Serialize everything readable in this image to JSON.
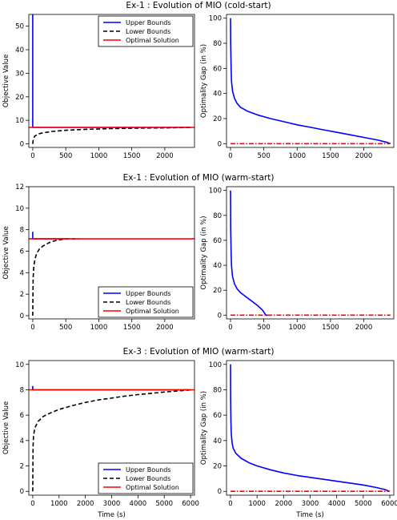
{
  "figure": {
    "row_titles": [
      "Ex-1 : Evolution of MIO (cold-start)",
      "Ex-1 : Evolution of MIO (warm-start)",
      "Ex-3 : Evolution of MIO (warm-start)"
    ],
    "colors": {
      "upper": "#0000ff",
      "lower": "#000000",
      "optimal": "#ff0000",
      "gap": "#0000ff",
      "gap_zero": "#ff0000"
    }
  },
  "chart_data": [
    {
      "type": "line",
      "title": "Ex-1 : Evolution of MIO (cold-start)",
      "xlabel": "",
      "ylabel": "Objective Value",
      "xlim": [
        -60,
        2450
      ],
      "ylim": [
        -1.5,
        55
      ],
      "xticks": [
        0,
        500,
        1000,
        1500,
        2000
      ],
      "yticks": [
        0,
        10,
        20,
        30,
        40,
        50
      ],
      "legend": {
        "position": "top-right",
        "entries": [
          "Upper Bounds",
          "Lower Bounds",
          "Optimal Solution"
        ]
      },
      "series": [
        {
          "name": "Upper Bounds",
          "style": "solid",
          "color": "#0000ff",
          "x": [
            0,
            0,
            0,
            8,
            40,
            100,
            500,
            1000,
            1500,
            2000,
            2400
          ],
          "y": [
            55,
            55,
            7.0,
            7.0,
            7.0,
            7.0,
            7.0,
            7.0,
            7.0,
            7.0,
            7.0
          ]
        },
        {
          "name": "Lower Bounds",
          "style": "dashed",
          "color": "#000000",
          "x": [
            0,
            8,
            30,
            80,
            150,
            300,
            500,
            800,
            1200,
            1600,
            2000,
            2400
          ],
          "y": [
            0,
            2.0,
            3.3,
            4.2,
            4.7,
            5.3,
            5.8,
            6.2,
            6.5,
            6.7,
            6.8,
            7.0
          ]
        },
        {
          "name": "Optimal Solution",
          "style": "solid",
          "color": "#ff0000",
          "x": [
            -60,
            2450
          ],
          "y": [
            7.0,
            7.0
          ]
        }
      ]
    },
    {
      "type": "line",
      "title": "",
      "xlabel": "",
      "ylabel": "Optimality Gap (in %)",
      "xlim": [
        -60,
        2450
      ],
      "ylim": [
        -3,
        103
      ],
      "xticks": [
        0,
        500,
        1000,
        1500,
        2000
      ],
      "yticks": [
        0,
        20,
        40,
        60,
        80,
        100
      ],
      "series": [
        {
          "style": "solid",
          "color": "#0000ff",
          "x": [
            0,
            3,
            8,
            15,
            30,
            60,
            100,
            150,
            250,
            400,
            600,
            800,
            1000,
            1200,
            1400,
            1600,
            1800,
            2000,
            2200,
            2350,
            2400
          ],
          "y": [
            100,
            80,
            62,
            50,
            42,
            36,
            32,
            29,
            26,
            23,
            20,
            17.5,
            15,
            13,
            11,
            9,
            7,
            5,
            3,
            1,
            0
          ]
        },
        {
          "style": "dashdot",
          "color": "#ff0000",
          "x": [
            0,
            2400
          ],
          "y": [
            0,
            0
          ]
        }
      ]
    },
    {
      "type": "line",
      "title": "Ex-1 : Evolution of MIO (warm-start)",
      "xlabel": "",
      "ylabel": "Objective Value",
      "xlim": [
        -60,
        2450
      ],
      "ylim": [
        -0.3,
        12
      ],
      "xticks": [
        0,
        500,
        1000,
        1500,
        2000
      ],
      "yticks": [
        0,
        2,
        4,
        6,
        8,
        10,
        12
      ],
      "legend": {
        "position": "bottom-right",
        "entries": [
          "Upper Bounds",
          "Lower Bounds",
          "Optimal Solution"
        ]
      },
      "series": [
        {
          "name": "Upper Bounds",
          "style": "solid",
          "color": "#0000ff",
          "x": [
            0,
            0,
            0,
            50,
            200,
            400,
            530
          ],
          "y": [
            7.8,
            7.8,
            7.15,
            7.15,
            7.15,
            7.15,
            7.15
          ]
        },
        {
          "name": "Lower Bounds",
          "style": "dashed",
          "color": "#000000",
          "x": [
            0,
            5,
            15,
            30,
            60,
            100,
            160,
            250,
            350,
            450,
            530,
            700
          ],
          "y": [
            0,
            3.5,
            4.5,
            5.2,
            5.8,
            6.2,
            6.5,
            6.8,
            7.0,
            7.1,
            7.15,
            7.15
          ]
        },
        {
          "name": "Optimal Solution",
          "style": "solid",
          "color": "#ff0000",
          "x": [
            -60,
            2450
          ],
          "y": [
            7.15,
            7.15
          ]
        }
      ]
    },
    {
      "type": "line",
      "title": "",
      "xlabel": "",
      "ylabel": "Optimality Gap (in %)",
      "xlim": [
        -60,
        2450
      ],
      "ylim": [
        -3,
        103
      ],
      "xticks": [
        0,
        500,
        1000,
        1500,
        2000
      ],
      "yticks": [
        0,
        20,
        40,
        60,
        80,
        100
      ],
      "series": [
        {
          "style": "solid",
          "color": "#0000ff",
          "x": [
            0,
            3,
            8,
            15,
            30,
            60,
            100,
            150,
            200,
            300,
            400,
            480,
            530,
            600
          ],
          "y": [
            100,
            70,
            52,
            40,
            31,
            25,
            21,
            18,
            16,
            12,
            8,
            4,
            0,
            0
          ]
        },
        {
          "style": "dashdot",
          "color": "#ff0000",
          "x": [
            0,
            2400
          ],
          "y": [
            0,
            0
          ]
        }
      ]
    },
    {
      "type": "line",
      "title": "Ex-3 : Evolution of MIO (warm-start)",
      "xlabel": "Time (s)",
      "ylabel": "Objective Value",
      "xlim": [
        -150,
        6150
      ],
      "ylim": [
        -0.3,
        10.3
      ],
      "xticks": [
        0,
        1000,
        2000,
        3000,
        4000,
        5000,
        6000
      ],
      "yticks": [
        0,
        2,
        4,
        6,
        8,
        10
      ],
      "legend": {
        "position": "bottom-right",
        "entries": [
          "Upper Bounds",
          "Lower Bounds",
          "Optimal Solution"
        ]
      },
      "series": [
        {
          "name": "Upper Bounds",
          "style": "solid",
          "color": "#0000ff",
          "x": [
            0,
            0,
            0,
            500,
            1500,
            3000,
            4500,
            6000
          ],
          "y": [
            8.3,
            8.3,
            8.0,
            8.0,
            8.0,
            8.0,
            8.0,
            8.0
          ]
        },
        {
          "name": "Lower Bounds",
          "style": "dashed",
          "color": "#000000",
          "x": [
            0,
            10,
            30,
            80,
            200,
            400,
            700,
            1000,
            1500,
            2000,
            2500,
            3000,
            3500,
            4000,
            4500,
            5000,
            5500,
            5900,
            6000
          ],
          "y": [
            0,
            3.5,
            4.4,
            5.0,
            5.5,
            5.9,
            6.2,
            6.45,
            6.75,
            7.0,
            7.2,
            7.35,
            7.5,
            7.62,
            7.72,
            7.82,
            7.9,
            7.97,
            8.0
          ]
        },
        {
          "name": "Optimal Solution",
          "style": "solid",
          "color": "#ff0000",
          "x": [
            -150,
            6150
          ],
          "y": [
            8.0,
            8.0
          ]
        }
      ]
    },
    {
      "type": "line",
      "title": "",
      "xlabel": "Time (s)",
      "ylabel": "Optimality Gap (in %)",
      "xlim": [
        -150,
        6150
      ],
      "ylim": [
        -3,
        103
      ],
      "xticks": [
        0,
        1000,
        2000,
        3000,
        4000,
        5000,
        6000
      ],
      "yticks": [
        0,
        20,
        40,
        60,
        80,
        100
      ],
      "series": [
        {
          "style": "solid",
          "color": "#0000ff",
          "x": [
            0,
            5,
            15,
            30,
            60,
            100,
            200,
            400,
            700,
            1000,
            1500,
            2000,
            2500,
            3000,
            3500,
            4000,
            4500,
            5000,
            5500,
            5800,
            6000
          ],
          "y": [
            100,
            75,
            55,
            45,
            38,
            34,
            30,
            26,
            22.5,
            20,
            17,
            14.5,
            12.5,
            11,
            9.5,
            8,
            6.5,
            5,
            3,
            1.5,
            0
          ]
        },
        {
          "style": "dashdot",
          "color": "#ff0000",
          "x": [
            0,
            6000
          ],
          "y": [
            0,
            0
          ]
        }
      ]
    }
  ]
}
